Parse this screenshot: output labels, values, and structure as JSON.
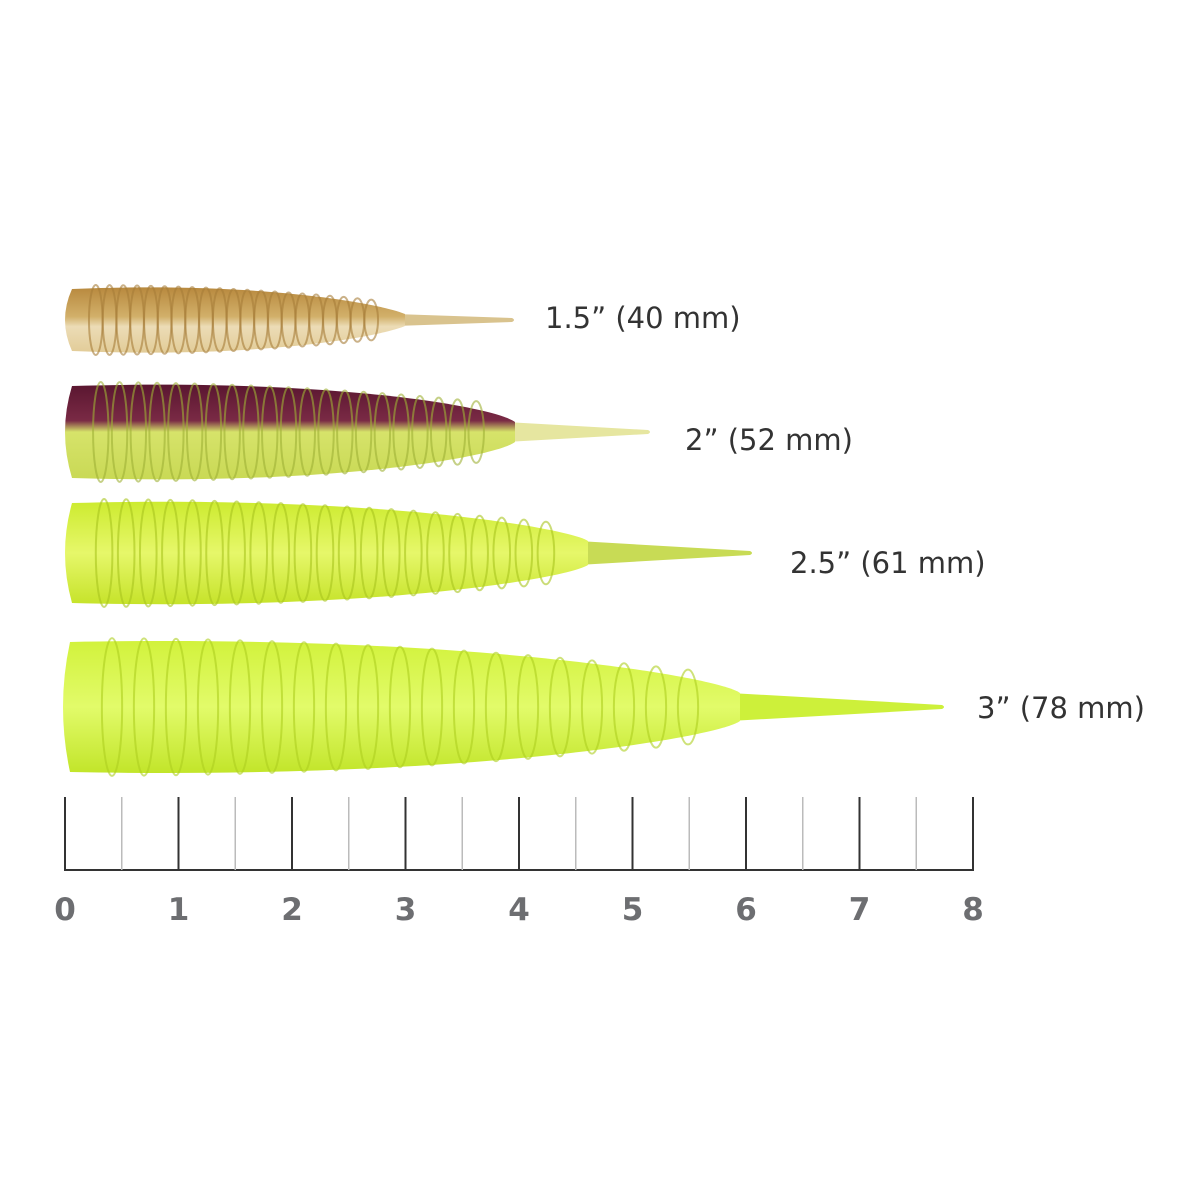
{
  "lures": [
    {
      "label": "1.5” (40 mm)"
    },
    {
      "label": "2” (52 mm)"
    },
    {
      "label": "2.5” (61 mm)"
    },
    {
      "label": "3” (78 mm)"
    }
  ],
  "ruler": {
    "labels": [
      "0",
      "1",
      "2",
      "3",
      "4",
      "5",
      "6",
      "7",
      "8"
    ]
  }
}
